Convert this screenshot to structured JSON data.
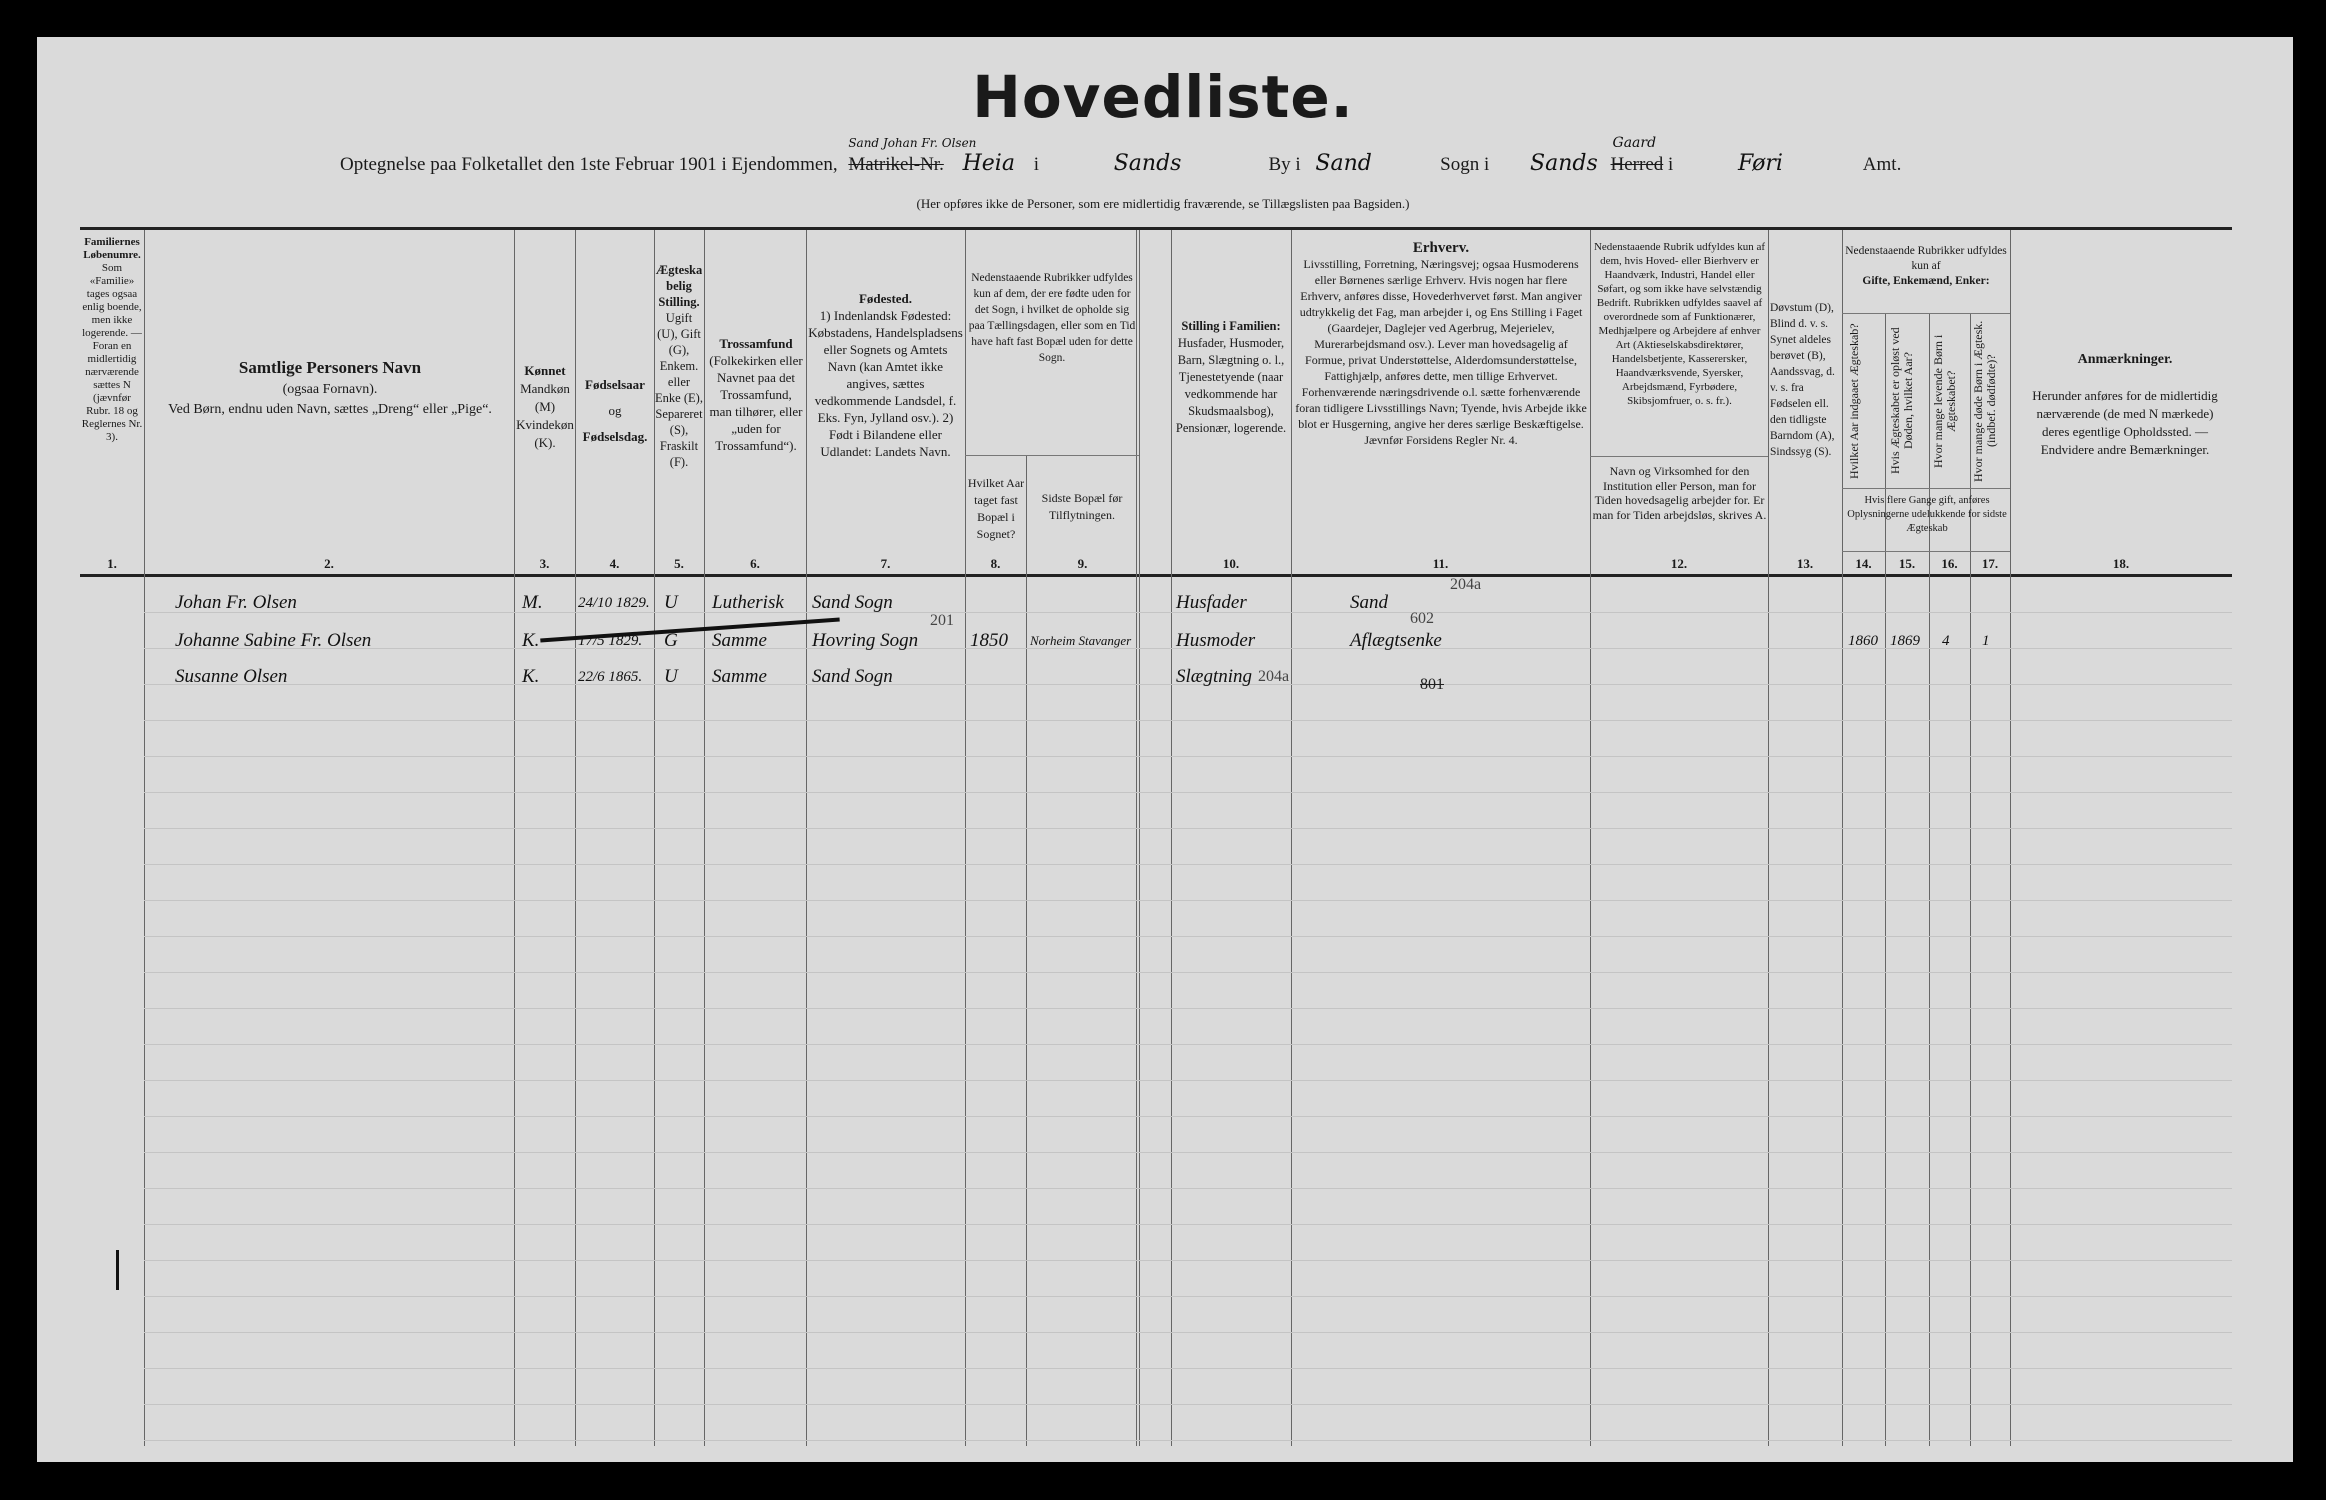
{
  "title": "Hovedliste.",
  "subtitle": {
    "prefix": "Optegnelse paa Folketallet den 1ste Februar 1901 i Ejendommen,",
    "struck_label": "Matrikel-Nr.",
    "property_owner_handwritten": "Sand Johan Fr. Olsen",
    "property_handwritten": "Heia",
    "i1": "i",
    "place_handwritten": "Sands",
    "by_label": "By i",
    "by_handwritten": "Sand",
    "sogn_label": "Sogn i",
    "sogn_handwritten": "Sands",
    "gaard_handwritten": "Gaard",
    "herred_struck": "Herred",
    "i2": "i",
    "amt_handwritten": "Føri",
    "amt_label": "Amt."
  },
  "note": "(Her opføres ikke de Personer, som ere midlertidig fraværende, se Tillægslisten paa Bagsiden.)",
  "columns": {
    "c1": {
      "head": "Familiernes Løbenumre.",
      "text": "Som «Familie» tages ogsaa enlig boende, men ikke logerende. — Foran en midlertidig nærværende sættes N (jævnfør Rubr. 18 og Reglernes Nr. 3).",
      "num": "1."
    },
    "c2": {
      "head": "Samtlige Personers Navn",
      "text1": "(ogsaa Fornavn).",
      "text2": "Ved Børn, endnu uden Navn, sættes „Dreng“ eller „Pige“.",
      "num": "2."
    },
    "c3": {
      "head": "Kønnet",
      "text": "Mandkøn (M) Kvindekøn (K).",
      "num": "3."
    },
    "c4": {
      "head": "Fødselsaar",
      "mid": "og",
      "head2": "Fødselsdag.",
      "num": "4."
    },
    "c5": {
      "head": "Ægteskabelig Stilling.",
      "text": "Ugift (U), Gift (G), Enkem. eller Enke (E), Separeret (S), Fraskilt (F).",
      "num": "5."
    },
    "c6": {
      "head": "Trossamfund",
      "text": "(Folkekirken eller Navnet paa det Trossamfund, man tilhører, eller „uden for Trossamfund“).",
      "num": "6."
    },
    "c7": {
      "head": "Fødested.",
      "text": "1) Indenlandsk Fødested: Købstadens, Handelspladsens eller Sognets og Amtets Navn (kan Amtet ikke angives, sættes vedkommende Landsdel, f. Eks. Fyn, Jylland osv.). 2) Født i Bilandene eller Udlandet: Landets Navn.",
      "num": "7."
    },
    "c89": {
      "text": "Nedenstaaende Rubrikker udfyldes kun af dem, der ere fødte uden for det Sogn, i hvilket de opholde sig paa Tællingsdagen, eller som en Tid have haft fast Bopæl uden for dette Sogn."
    },
    "c8": {
      "text": "Hvilket Aar taget fast Bopæl i Sognet?",
      "num": "8."
    },
    "c9": {
      "text": "Sidste Bopæl før Tilflytningen.",
      "num": "9."
    },
    "c10": {
      "head": "Stilling i Familien:",
      "text": "Husfader, Husmoder, Barn, Slægtning o. l., Tjenestetyende (naar vedkommende har Skudsmaalsbog), Pensionær, logerende.",
      "num": "10."
    },
    "c11": {
      "head": "Erhverv.",
      "text": "Livsstilling, Forretning, Næringsvej; ogsaa Husmoderens eller Børnenes særlige Erhverv. Hvis nogen har flere Erhverv, anføres disse, Hovederhvervet først. Man angiver udtrykkelig det Fag, man arbejder i, og Ens Stilling i Faget (Gaardejer, Daglejer ved Agerbrug, Mejerielev, Murerarbejdsmand osv.). Lever man hovedsagelig af Formue, privat Understøttelse, Alderdomsunderstøttelse, Fattighjælp, anføres dette, men tillige Erhvervet. Forhenværende næringsdrivende o.l. sætte forhenværende foran tidligere Livsstillings Navn; Tyende, hvis Arbejde ikke blot er Husgerning, angive her deres særlige Beskæftigelse. Jævnfør Forsidens Regler Nr. 4.",
      "num": "11."
    },
    "c12": {
      "text": "Nedenstaaende Rubrik udfyldes kun af dem, hvis Hoved- eller Bierhverv er Haandværk, Industri, Handel eller Søfart, og som ikke have selvstændig Bedrift. Rubrikken udfyldes saavel af overordnede som af Funktionærer, Medhjælpere og Arbejdere af enhver Art (Aktieselskabsdirektører, Handelsbetjente, Kasserersker, Haandværksvende, Syersker, Arbejdsmænd, Fyrbødere, Skibsjomfruer, o. s. fr.).",
      "text2": "Navn og Virksomhed for den Institution eller Person, man for Tiden hovedsagelig arbejder for. Er man for Tiden arbejdsløs, skrives A.",
      "num": "12."
    },
    "c13": {
      "text": "Døvstum (D), Blind d. v. s. Synet aldeles berøvet (B), Aandssvag, d. v. s. fra Fødselen ell. den tidligste Barndom (A), Sindssyg (S).",
      "num": "13."
    },
    "c1417": {
      "text": "Nedenstaaende Rubrikker udfyldes kun af",
      "bold": "Gifte, Enkemænd, Enker:",
      "foot": "Hvis flere Gange gift, anføres Oplysningerne udelukkende for sidste Ægteskab"
    },
    "c14": {
      "text": "Hvilket Aar indgaaet Ægteskab?",
      "num": "14."
    },
    "c15": {
      "text": "Hvis Ægteskabet er opløst ved Døden, hvilket Aar?",
      "num": "15."
    },
    "c16": {
      "text": "Hvor mange levende Børn i Ægteskabet?",
      "num": "16."
    },
    "c17": {
      "text": "Hvor mange døde Børn i Ægtesk. (indbef. dødfødte)?",
      "num": "17."
    },
    "c18": {
      "head": "Anmærkninger.",
      "text": "Herunder anføres for de midlertidig nærværende (de med N mærkede) deres egentlige Opholdssted. — Endvidere andre Bemærkninger.",
      "num": "18."
    }
  },
  "rows": [
    {
      "name": "Johan Fr. Olsen",
      "sex": "M.",
      "born": "24/10 1829.",
      "marital": "U",
      "faith": "Lutherisk",
      "birthplace": "Sand Sogn",
      "year_settled": "",
      "last_residence": "",
      "role": "Husfader",
      "occupation": "Sand",
      "occupation_code": "204a",
      "c14": "",
      "c15": "",
      "c16": "",
      "c17": ""
    },
    {
      "name": "Johanne Sabine Fr. Olsen",
      "sex": "K.",
      "born": "17/5 1829.",
      "marital": "G",
      "faith": "Samme",
      "birthplace": "Hovring Sogn",
      "birthplace_code": "201",
      "year_settled": "1850",
      "last_residence": "Norheim Stavanger",
      "role": "Husmoder",
      "occupation": "Aflægtsenke",
      "occupation_code": "602",
      "c14": "1860",
      "c15": "1869",
      "c16": "4",
      "c17": "1"
    },
    {
      "name": "Susanne Olsen",
      "sex": "K.",
      "born": "22/6 1865.",
      "marital": "U",
      "faith": "Samme",
      "birthplace": "Sand Sogn",
      "year_settled": "",
      "last_residence": "",
      "role": "Slægtning",
      "role_code": "204a",
      "occupation": "",
      "occupation_code": "801"
    }
  ]
}
